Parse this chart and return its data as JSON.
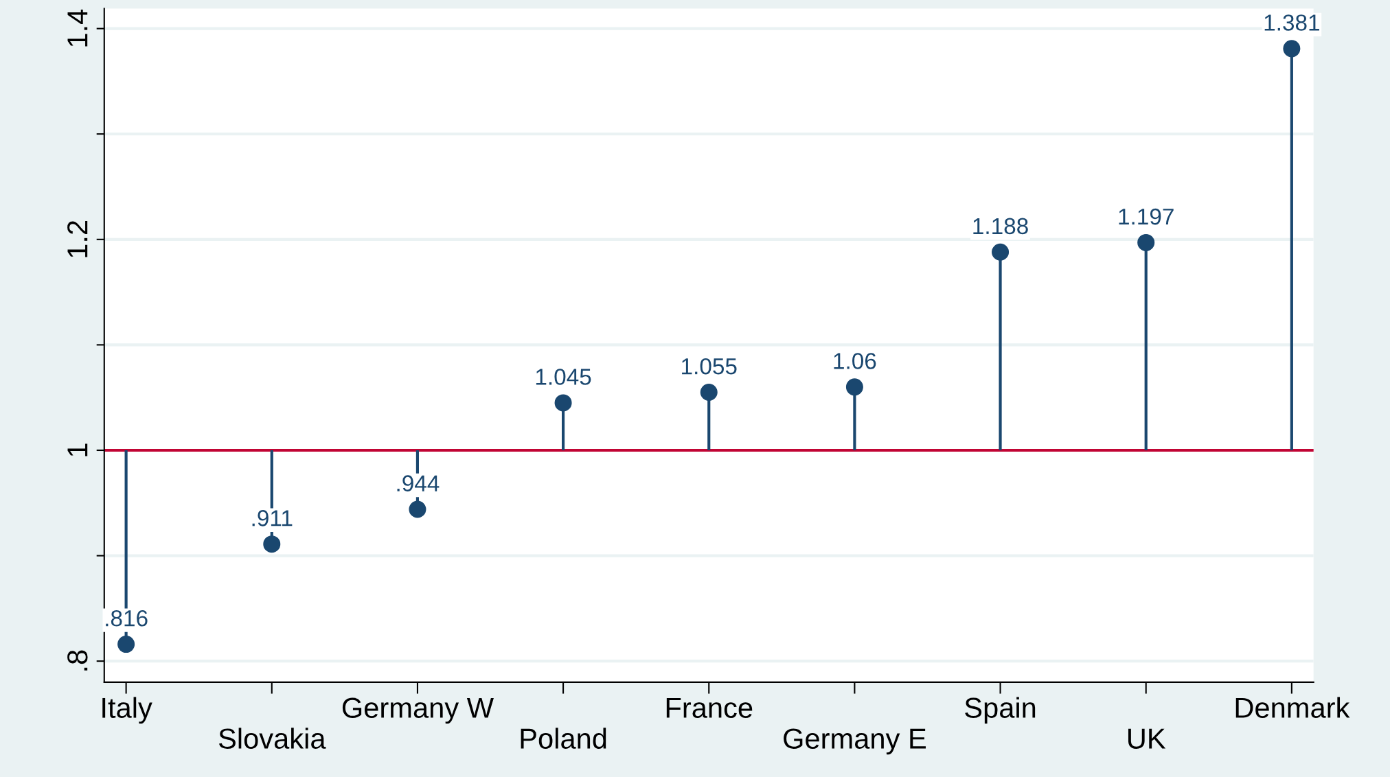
{
  "chart_data": {
    "type": "lollipop",
    "categories": [
      "Italy",
      "Slovakia",
      "Germany W",
      "Poland",
      "France",
      "Germany E",
      "Spain",
      "UK",
      "Denmark"
    ],
    "values": [
      0.816,
      0.911,
      0.944,
      1.045,
      1.055,
      1.06,
      1.188,
      1.197,
      1.381
    ],
    "value_labels": [
      ".816",
      ".911",
      ".944",
      "1.045",
      "1.055",
      "1.06",
      "1.188",
      "1.197",
      "1.381"
    ],
    "color": "#1a476f",
    "marker": "circle",
    "ylim": [
      0.78,
      1.419
    ],
    "yticks": [
      {
        "value": 0.8,
        "label": ".8"
      },
      {
        "value": 0.9,
        "label": null
      },
      1,
      {
        "value": 1.1,
        "label": null
      },
      1.2,
      {
        "value": 1.3,
        "label": null
      },
      1.4
    ],
    "ref_lines": [
      {
        "axis": "y",
        "value": 1,
        "color": "#c10534"
      }
    ],
    "grid": "y"
  }
}
